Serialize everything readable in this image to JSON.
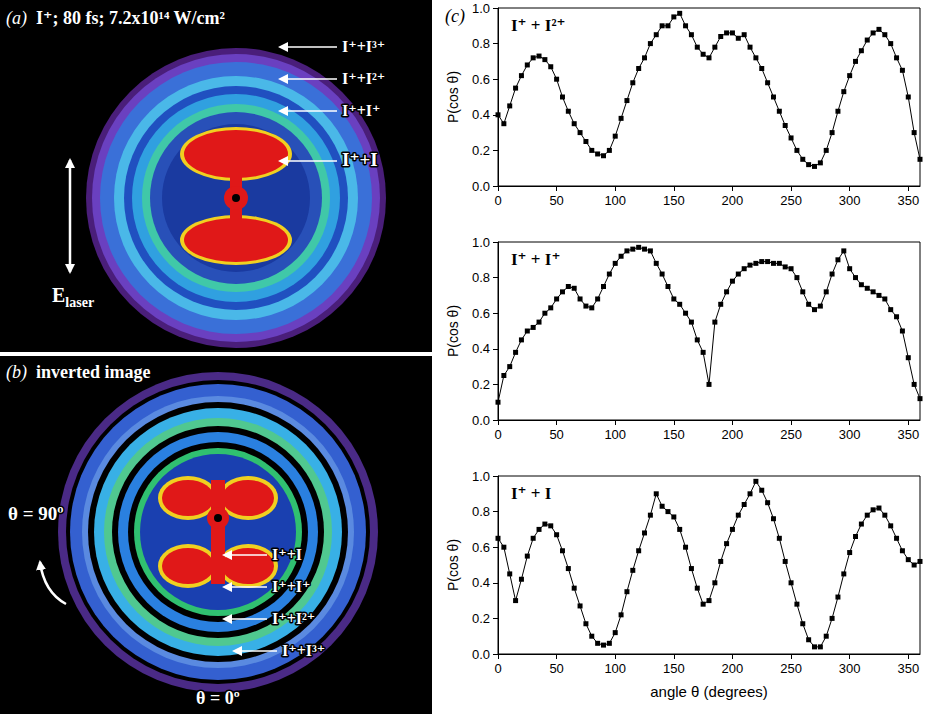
{
  "panels": {
    "a": {
      "letter": "(a)",
      "title": "I⁺; 80 fs; 7.2x10¹⁴ W/cm²",
      "ring_labels": [
        "I⁺+I³⁺",
        "I⁺+I²⁺",
        "I⁺+I⁺",
        "I⁺+I"
      ],
      "field": {
        "label": "E",
        "subscript": "laser"
      }
    },
    "b": {
      "letter": "(b)",
      "title": "inverted image",
      "ring_labels": [
        "I⁺+I",
        "I⁺+I⁺",
        "I⁺+I²⁺",
        "I⁺+I³⁺"
      ],
      "angle_labels": {
        "direction": "θ = 90º",
        "start": "θ = 0º"
      }
    }
  },
  "panel_c": {
    "letter": "(c)"
  },
  "chart_data": [
    {
      "type": "line",
      "title": "I⁺ + I²⁺",
      "ylabel": "P(cos θ)",
      "marker": "square",
      "color": "#000000",
      "grid": false,
      "xlim": [
        0,
        360
      ],
      "xticks": [
        0,
        50,
        100,
        150,
        200,
        250,
        300,
        350
      ],
      "ylim": [
        0,
        1.0
      ],
      "yticks": [
        {
          "value": 0,
          "label": "0.0"
        },
        {
          "value": 0.2,
          "label": "0.2"
        },
        {
          "value": 0.4,
          "label": "0.4"
        },
        {
          "value": 0.6,
          "label": "0.6"
        },
        {
          "value": 0.8,
          "label": "0.8"
        },
        {
          "value": 1.0,
          "label": "1.0"
        }
      ],
      "x": [
        0,
        5,
        10,
        15,
        20,
        25,
        30,
        35,
        40,
        45,
        50,
        55,
        60,
        65,
        70,
        75,
        80,
        85,
        90,
        95,
        100,
        105,
        110,
        115,
        120,
        125,
        130,
        135,
        140,
        145,
        150,
        155,
        160,
        165,
        170,
        175,
        180,
        185,
        190,
        195,
        200,
        205,
        210,
        215,
        220,
        225,
        230,
        235,
        240,
        245,
        250,
        255,
        260,
        265,
        270,
        275,
        280,
        285,
        290,
        295,
        300,
        305,
        310,
        315,
        320,
        325,
        330,
        335,
        340,
        345,
        350,
        355,
        360
      ],
      "values": [
        0.4,
        0.35,
        0.45,
        0.55,
        0.62,
        0.68,
        0.72,
        0.73,
        0.71,
        0.67,
        0.6,
        0.5,
        0.42,
        0.35,
        0.3,
        0.25,
        0.2,
        0.18,
        0.17,
        0.2,
        0.28,
        0.38,
        0.48,
        0.58,
        0.66,
        0.72,
        0.8,
        0.85,
        0.9,
        0.9,
        0.95,
        0.97,
        0.9,
        0.85,
        0.78,
        0.74,
        0.72,
        0.78,
        0.84,
        0.86,
        0.86,
        0.83,
        0.85,
        0.78,
        0.72,
        0.66,
        0.58,
        0.5,
        0.42,
        0.34,
        0.27,
        0.2,
        0.15,
        0.12,
        0.11,
        0.13,
        0.2,
        0.3,
        0.42,
        0.53,
        0.62,
        0.7,
        0.76,
        0.82,
        0.86,
        0.88,
        0.85,
        0.8,
        0.72,
        0.65,
        0.5,
        0.3,
        0.15
      ]
    },
    {
      "type": "line",
      "title": "I⁺ + I⁺",
      "ylabel": "P(cos θ)",
      "marker": "square",
      "color": "#000000",
      "grid": false,
      "xlim": [
        0,
        360
      ],
      "xticks": [
        0,
        50,
        100,
        150,
        200,
        250,
        300,
        350
      ],
      "ylim": [
        0,
        1.0
      ],
      "yticks": [
        {
          "value": 0,
          "label": "0.0"
        },
        {
          "value": 0.2,
          "label": "0.2"
        },
        {
          "value": 0.4,
          "label": "0.4"
        },
        {
          "value": 0.6,
          "label": "0.6"
        },
        {
          "value": 0.8,
          "label": "0.8"
        },
        {
          "value": 1.0,
          "label": "1.0"
        }
      ],
      "x": [
        0,
        5,
        10,
        15,
        20,
        25,
        30,
        35,
        40,
        45,
        50,
        55,
        60,
        65,
        70,
        75,
        80,
        85,
        90,
        95,
        100,
        105,
        110,
        115,
        120,
        125,
        130,
        135,
        140,
        145,
        150,
        155,
        160,
        165,
        170,
        175,
        180,
        185,
        190,
        195,
        200,
        205,
        210,
        215,
        220,
        225,
        230,
        235,
        240,
        245,
        250,
        255,
        260,
        265,
        270,
        275,
        280,
        285,
        290,
        295,
        300,
        305,
        310,
        315,
        320,
        325,
        330,
        335,
        340,
        345,
        350,
        355,
        360
      ],
      "values": [
        0.1,
        0.25,
        0.3,
        0.38,
        0.45,
        0.5,
        0.52,
        0.55,
        0.6,
        0.63,
        0.68,
        0.72,
        0.75,
        0.74,
        0.68,
        0.64,
        0.63,
        0.68,
        0.75,
        0.82,
        0.88,
        0.92,
        0.95,
        0.96,
        0.97,
        0.96,
        0.95,
        0.88,
        0.82,
        0.75,
        0.68,
        0.65,
        0.6,
        0.55,
        0.45,
        0.38,
        0.2,
        0.55,
        0.65,
        0.72,
        0.78,
        0.82,
        0.85,
        0.87,
        0.88,
        0.89,
        0.89,
        0.88,
        0.88,
        0.86,
        0.85,
        0.8,
        0.72,
        0.65,
        0.62,
        0.64,
        0.72,
        0.82,
        0.9,
        0.95,
        0.85,
        0.8,
        0.76,
        0.74,
        0.72,
        0.7,
        0.68,
        0.62,
        0.58,
        0.5,
        0.35,
        0.2,
        0.12
      ]
    },
    {
      "type": "line",
      "title": "I⁺ + I",
      "ylabel": "P(cos θ)",
      "xlabel": "angle θ (degrees)",
      "marker": "square",
      "color": "#000000",
      "grid": false,
      "xlim": [
        0,
        360
      ],
      "xticks": [
        0,
        50,
        100,
        150,
        200,
        250,
        300,
        350
      ],
      "ylim": [
        0,
        1.0
      ],
      "yticks": [
        {
          "value": 0,
          "label": "0.0"
        },
        {
          "value": 0.2,
          "label": "0.2"
        },
        {
          "value": 0.4,
          "label": "0.4"
        },
        {
          "value": 0.6,
          "label": "0.6"
        },
        {
          "value": 0.8,
          "label": "0.8"
        },
        {
          "value": 1.0,
          "label": "1.0"
        }
      ],
      "x": [
        0,
        5,
        10,
        15,
        20,
        25,
        30,
        35,
        40,
        45,
        50,
        55,
        60,
        65,
        70,
        75,
        80,
        85,
        90,
        95,
        100,
        105,
        110,
        115,
        120,
        125,
        130,
        135,
        140,
        145,
        150,
        155,
        160,
        165,
        170,
        175,
        180,
        185,
        190,
        195,
        200,
        205,
        210,
        215,
        220,
        225,
        230,
        235,
        240,
        245,
        250,
        255,
        260,
        265,
        270,
        275,
        280,
        285,
        290,
        295,
        300,
        305,
        310,
        315,
        320,
        325,
        330,
        335,
        340,
        345,
        350,
        355,
        360
      ],
      "values": [
        0.65,
        0.6,
        0.45,
        0.3,
        0.42,
        0.55,
        0.65,
        0.7,
        0.73,
        0.72,
        0.67,
        0.58,
        0.48,
        0.37,
        0.27,
        0.17,
        0.1,
        0.06,
        0.05,
        0.06,
        0.12,
        0.22,
        0.35,
        0.47,
        0.58,
        0.68,
        0.78,
        0.9,
        0.83,
        0.8,
        0.77,
        0.7,
        0.6,
        0.48,
        0.37,
        0.28,
        0.3,
        0.4,
        0.52,
        0.62,
        0.7,
        0.78,
        0.84,
        0.9,
        0.97,
        0.92,
        0.85,
        0.76,
        0.65,
        0.52,
        0.4,
        0.28,
        0.17,
        0.08,
        0.04,
        0.04,
        0.1,
        0.2,
        0.32,
        0.45,
        0.57,
        0.66,
        0.73,
        0.78,
        0.81,
        0.82,
        0.78,
        0.72,
        0.65,
        0.58,
        0.53,
        0.5,
        0.52
      ]
    }
  ]
}
